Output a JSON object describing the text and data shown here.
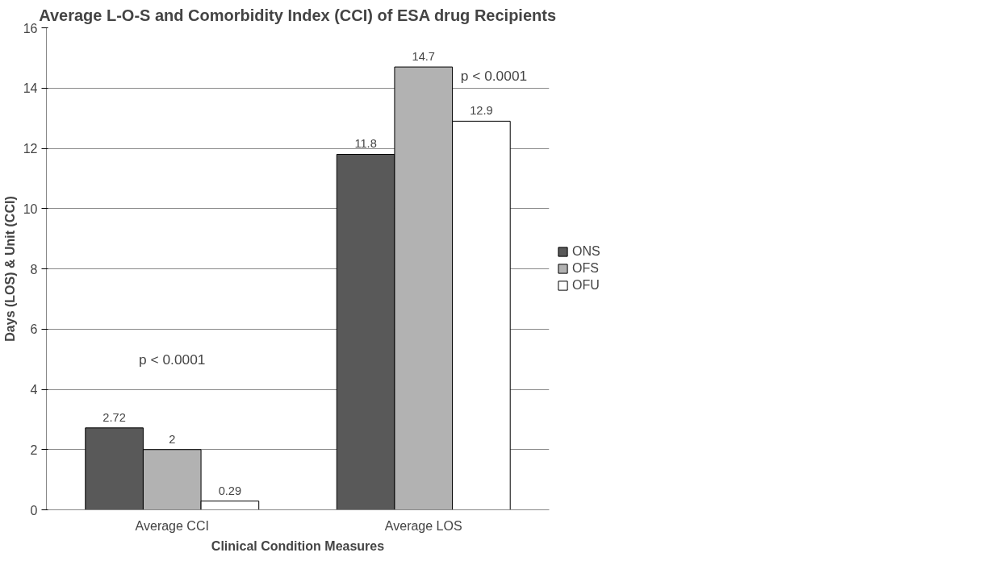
{
  "chart_data": {
    "type": "bar",
    "title": "Average L-O-S and Comorbidity Index (CCI) of ESA drug Recipients",
    "xlabel": "Clinical Condition Measures",
    "ylabel": "Days (LOS) & Unit (CCI)",
    "categories": [
      "Average CCI",
      "Average LOS"
    ],
    "series": [
      {
        "name": "ONS",
        "color": "#595959",
        "values": [
          2.72,
          11.8
        ]
      },
      {
        "name": "OFS",
        "color": "#b2b2b2",
        "values": [
          2,
          14.7
        ]
      },
      {
        "name": "OFU",
        "color": "#ffffff",
        "values": [
          0.29,
          12.9
        ]
      }
    ],
    "ylim": [
      0,
      16
    ],
    "yticks": [
      0,
      2,
      4,
      6,
      8,
      10,
      12,
      14,
      16
    ],
    "grid": "y",
    "legend": "right",
    "data_labels": true,
    "annotations": [
      "p < 0.0001",
      "p < 0.0001"
    ]
  }
}
